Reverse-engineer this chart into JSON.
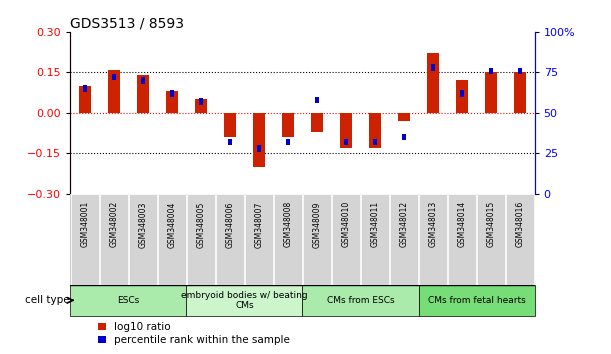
{
  "title": "GDS3513 / 8593",
  "samples": [
    "GSM348001",
    "GSM348002",
    "GSM348003",
    "GSM348004",
    "GSM348005",
    "GSM348006",
    "GSM348007",
    "GSM348008",
    "GSM348009",
    "GSM348010",
    "GSM348011",
    "GSM348012",
    "GSM348013",
    "GSM348014",
    "GSM348015",
    "GSM348016"
  ],
  "log10_ratio": [
    0.1,
    0.16,
    0.14,
    0.08,
    0.05,
    -0.09,
    -0.2,
    -0.09,
    -0.07,
    -0.13,
    -0.13,
    -0.03,
    0.22,
    0.12,
    0.15,
    0.15
  ],
  "percentile_rank": [
    65,
    72,
    70,
    62,
    57,
    32,
    28,
    32,
    58,
    32,
    32,
    35,
    78,
    62,
    76,
    76
  ],
  "cell_types": [
    {
      "label": "ESCs",
      "start": 0,
      "end": 4,
      "color": "#aaeaaa"
    },
    {
      "label": "embryoid bodies w/ beating\nCMs",
      "start": 4,
      "end": 8,
      "color": "#ccf5cc"
    },
    {
      "label": "CMs from ESCs",
      "start": 8,
      "end": 12,
      "color": "#aaeaaa"
    },
    {
      "label": "CMs from fetal hearts",
      "start": 12,
      "end": 16,
      "color": "#77dd77"
    }
  ],
  "red_color": "#cc2200",
  "blue_color": "#0000cc",
  "bar_width": 0.4,
  "blue_bar_width": 0.15,
  "blue_bar_height": 0.012,
  "ylim_left": [
    -0.3,
    0.3
  ],
  "ylim_right": [
    0,
    100
  ],
  "yticks_left": [
    -0.3,
    -0.15,
    0,
    0.15,
    0.3
  ],
  "yticks_right": [
    0,
    25,
    50,
    75,
    100
  ],
  "yticklabels_right": [
    "0",
    "25",
    "50",
    "75",
    "100%"
  ],
  "hlines_dotted": [
    -0.15,
    0.15
  ],
  "hline_red": 0,
  "background_color": "#ffffff",
  "legend_log10": "log10 ratio",
  "legend_pct": "percentile rank within the sample",
  "cell_type_label": "cell type"
}
